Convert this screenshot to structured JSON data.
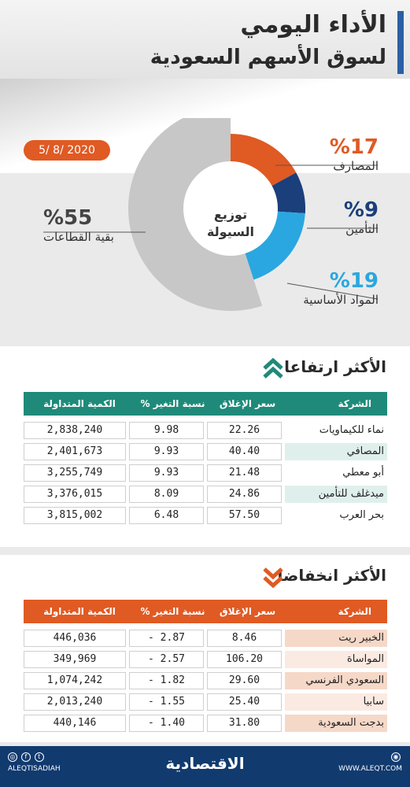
{
  "header": {
    "title_line1": "الأداء اليومي",
    "title_line2": "لسوق الأسهم السعودية",
    "date": "5/ 8/ 2020"
  },
  "liquidity": {
    "center_line1": "توزيع",
    "center_line2": "السيولة",
    "segments": [
      {
        "pct": "%17",
        "label": "المصارف",
        "value": 17,
        "color": "#e05a23"
      },
      {
        "pct": "%9",
        "label": "التأمين",
        "value": 9,
        "color": "#1b3f7a"
      },
      {
        "pct": "%19",
        "label": "المواد الأساسية",
        "value": 19,
        "color": "#2aa7e0"
      },
      {
        "pct": "%55",
        "label": "بقية القطاعات",
        "value": 55,
        "color": "#c7c7c7"
      }
    ]
  },
  "gainers": {
    "title": "الأكثر ارتفاعا",
    "header_color": "#1f8a7a",
    "headers": {
      "company": "الشركة",
      "close": "سعر الإغلاق",
      "change": "نسبة التغير %",
      "volume": "الكمية المتداولة"
    },
    "rows": [
      {
        "company": "نماء للكيماويات",
        "close": "22.26",
        "change": "9.98",
        "volume": "2,838,240"
      },
      {
        "company": "المصافي",
        "close": "40.40",
        "change": "9.93",
        "volume": "2,401,673"
      },
      {
        "company": "أبو معطي",
        "close": "21.48",
        "change": "9.93",
        "volume": "3,255,749"
      },
      {
        "company": "ميدغلف للتأمين",
        "close": "24.86",
        "change": "8.09",
        "volume": "3,376,015"
      },
      {
        "company": "بحر العرب",
        "close": "57.50",
        "change": "6.48",
        "volume": "3,815,002"
      }
    ]
  },
  "losers": {
    "title": "الأكثر انخفاضا",
    "header_color": "#e05a23",
    "headers": {
      "company": "الشركة",
      "close": "سعر الإغلاق",
      "change": "نسبة التغير %",
      "volume": "الكمية المتداولة"
    },
    "rows": [
      {
        "company": "الخبير ريت",
        "close": "8.46",
        "change": "2.87 -",
        "volume": "446,036"
      },
      {
        "company": "المواساة",
        "close": "106.20",
        "change": "2.57 -",
        "volume": "349,969"
      },
      {
        "company": "السعودي الفرنسي",
        "close": "29.60",
        "change": "1.82 -",
        "volume": "1,074,242"
      },
      {
        "company": "سابيا",
        "close": "25.40",
        "change": "1.55 -",
        "volume": "2,013,240"
      },
      {
        "company": "بدجت السعودية",
        "close": "31.80",
        "change": "1.40 -",
        "volume": "440,146"
      }
    ]
  },
  "footer": {
    "logo": "الاقتصادية",
    "handle": "ALEQTISADIAH",
    "website": "WWW.ALEQT.COM"
  }
}
